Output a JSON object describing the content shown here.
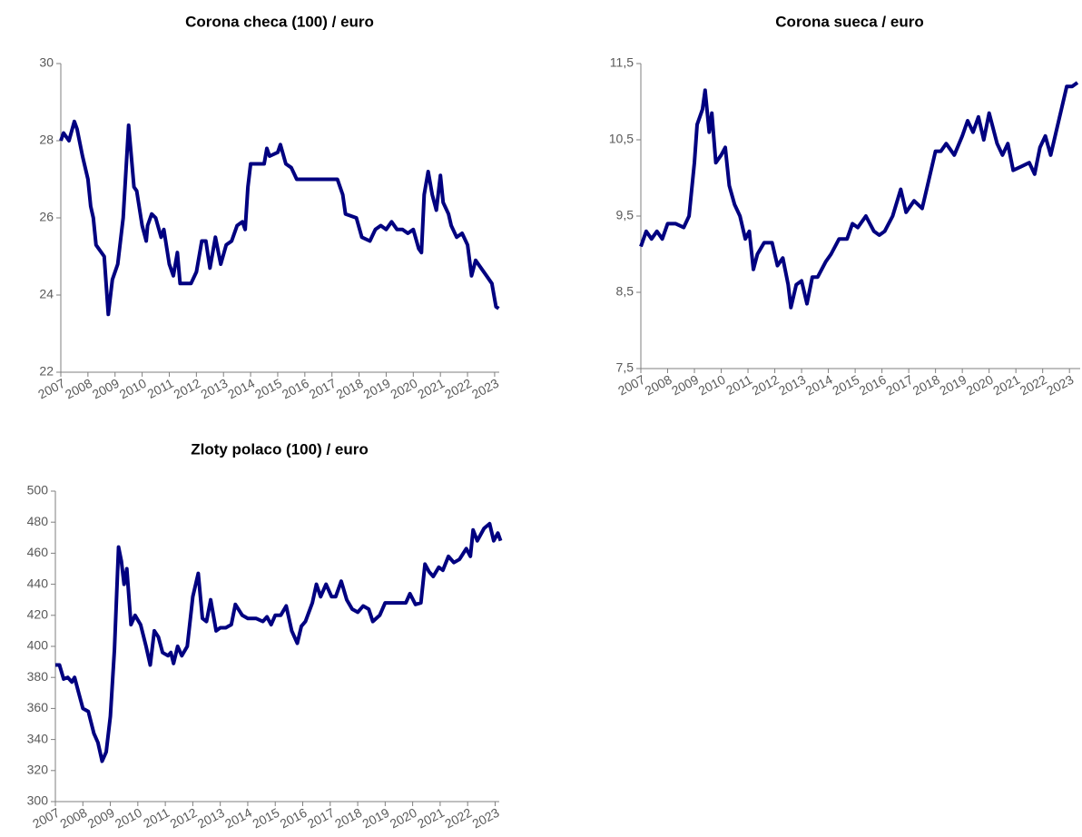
{
  "chart_data": [
    {
      "type": "line",
      "title": "Corona checa (100) / euro",
      "color": "#000080",
      "x": [
        2007.0,
        2007.1,
        2007.3,
        2007.5,
        2007.6,
        2007.8,
        2008.0,
        2008.1,
        2008.2,
        2008.3,
        2008.6,
        2008.75,
        2008.9,
        2009.1,
        2009.3,
        2009.5,
        2009.7,
        2009.8,
        2010.0,
        2010.15,
        2010.2,
        2010.35,
        2010.5,
        2010.7,
        2010.8,
        2011.0,
        2011.15,
        2011.3,
        2011.4,
        2011.6,
        2011.8,
        2012.0,
        2012.2,
        2012.35,
        2012.5,
        2012.7,
        2012.9,
        2013.1,
        2013.3,
        2013.5,
        2013.7,
        2013.8,
        2013.9,
        2014.0,
        2014.3,
        2014.5,
        2014.6,
        2014.7,
        2015.0,
        2015.1,
        2015.3,
        2015.5,
        2015.7,
        2016.0,
        2016.3,
        2016.6,
        2016.9,
        2017.2,
        2017.4,
        2017.5,
        2017.9,
        2018.1,
        2018.4,
        2018.6,
        2018.8,
        2019.0,
        2019.2,
        2019.4,
        2019.6,
        2019.8,
        2020.0,
        2020.2,
        2020.3,
        2020.4,
        2020.55,
        2020.7,
        2020.85,
        2021.0,
        2021.1,
        2021.3,
        2021.4,
        2021.6,
        2021.8,
        2022.0,
        2022.15,
        2022.3,
        2022.5,
        2022.7,
        2022.9,
        2023.05,
        2023.15
      ],
      "values": [
        28.0,
        28.2,
        28.0,
        28.5,
        28.3,
        27.6,
        27.0,
        26.3,
        26.0,
        25.3,
        25.0,
        23.5,
        24.4,
        24.8,
        26.0,
        28.4,
        26.8,
        26.7,
        25.8,
        25.4,
        25.8,
        26.1,
        26.0,
        25.5,
        25.7,
        24.8,
        24.5,
        25.1,
        24.3,
        24.3,
        24.3,
        24.6,
        25.4,
        25.4,
        24.7,
        25.5,
        24.8,
        25.3,
        25.4,
        25.8,
        25.9,
        25.7,
        26.8,
        27.4,
        27.4,
        27.4,
        27.8,
        27.6,
        27.7,
        27.9,
        27.4,
        27.3,
        27.0,
        27.0,
        27.0,
        27.0,
        27.0,
        27.0,
        26.6,
        26.1,
        26.0,
        25.5,
        25.4,
        25.7,
        25.8,
        25.7,
        25.9,
        25.7,
        25.7,
        25.6,
        25.7,
        25.2,
        25.1,
        26.6,
        27.2,
        26.6,
        26.2,
        27.1,
        26.4,
        26.1,
        25.8,
        25.5,
        25.6,
        25.3,
        24.5,
        24.9,
        24.7,
        24.5,
        24.3,
        23.7,
        23.65
      ],
      "xlim": [
        2007,
        2023.17
      ],
      "xticks": [
        2007,
        2008,
        2009,
        2010,
        2011,
        2012,
        2013,
        2014,
        2015,
        2016,
        2017,
        2018,
        2019,
        2020,
        2021,
        2022,
        2023
      ],
      "ylim": [
        22,
        30
      ],
      "yticks": [
        22,
        24,
        26,
        28,
        30
      ]
    },
    {
      "type": "line",
      "title": "Corona sueca / euro",
      "color": "#000080",
      "x": [
        2007.0,
        2007.2,
        2007.4,
        2007.6,
        2007.8,
        2008.0,
        2008.3,
        2008.6,
        2008.8,
        2009.0,
        2009.1,
        2009.3,
        2009.4,
        2009.55,
        2009.65,
        2009.8,
        2010.0,
        2010.15,
        2010.3,
        2010.5,
        2010.7,
        2010.9,
        2011.05,
        2011.2,
        2011.35,
        2011.6,
        2011.9,
        2012.1,
        2012.3,
        2012.5,
        2012.6,
        2012.8,
        2013.0,
        2013.2,
        2013.4,
        2013.6,
        2013.9,
        2014.1,
        2014.4,
        2014.7,
        2014.9,
        2015.1,
        2015.4,
        2015.7,
        2015.9,
        2016.1,
        2016.4,
        2016.7,
        2016.9,
        2017.2,
        2017.5,
        2017.7,
        2018.0,
        2018.2,
        2018.4,
        2018.7,
        2019.0,
        2019.2,
        2019.4,
        2019.6,
        2019.8,
        2020.0,
        2020.3,
        2020.5,
        2020.7,
        2020.9,
        2021.2,
        2021.5,
        2021.7,
        2021.9,
        2022.1,
        2022.3,
        2022.5,
        2022.7,
        2022.9,
        2023.1,
        2023.3
      ],
      "values": [
        9.1,
        9.3,
        9.2,
        9.3,
        9.2,
        9.4,
        9.4,
        9.35,
        9.5,
        10.2,
        10.7,
        10.9,
        11.15,
        10.6,
        10.85,
        10.2,
        10.3,
        10.4,
        9.9,
        9.65,
        9.5,
        9.2,
        9.3,
        8.8,
        9.0,
        9.15,
        9.15,
        8.85,
        8.95,
        8.6,
        8.3,
        8.6,
        8.65,
        8.35,
        8.7,
        8.7,
        8.9,
        9.0,
        9.2,
        9.2,
        9.4,
        9.35,
        9.5,
        9.3,
        9.25,
        9.3,
        9.5,
        9.85,
        9.55,
        9.7,
        9.6,
        9.9,
        10.35,
        10.35,
        10.45,
        10.3,
        10.55,
        10.75,
        10.6,
        10.8,
        10.5,
        10.85,
        10.45,
        10.3,
        10.45,
        10.1,
        10.15,
        10.2,
        10.05,
        10.4,
        10.55,
        10.3,
        10.6,
        10.9,
        11.2,
        11.2,
        11.25
      ],
      "xlim": [
        2007,
        2023.4
      ],
      "xticks": [
        2007,
        2008,
        2009,
        2010,
        2011,
        2012,
        2013,
        2014,
        2015,
        2016,
        2017,
        2018,
        2019,
        2020,
        2021,
        2022,
        2023
      ],
      "ylim": [
        7.5,
        11.5
      ],
      "yticks": [
        {
          "value": 7.5,
          "label": "7,5"
        },
        {
          "value": 8.5,
          "label": "8,5"
        },
        {
          "value": 9.5,
          "label": "9,5"
        },
        {
          "value": 10.5,
          "label": "10,5"
        },
        {
          "value": 11.5,
          "label": "11,5"
        }
      ]
    },
    {
      "type": "line",
      "title": "Zloty polaco (100) / euro",
      "color": "#000080",
      "x": [
        2007.0,
        2007.15,
        2007.3,
        2007.45,
        2007.6,
        2007.7,
        2007.85,
        2008.0,
        2008.2,
        2008.4,
        2008.55,
        2008.7,
        2008.85,
        2009.0,
        2009.15,
        2009.3,
        2009.4,
        2009.5,
        2009.6,
        2009.75,
        2009.9,
        2010.1,
        2010.3,
        2010.45,
        2010.6,
        2010.75,
        2010.9,
        2011.1,
        2011.2,
        2011.3,
        2011.45,
        2011.6,
        2011.8,
        2012.0,
        2012.2,
        2012.35,
        2012.5,
        2012.65,
        2012.85,
        2013.0,
        2013.2,
        2013.4,
        2013.55,
        2013.8,
        2014.0,
        2014.3,
        2014.55,
        2014.7,
        2014.85,
        2015.0,
        2015.2,
        2015.4,
        2015.6,
        2015.8,
        2015.95,
        2016.1,
        2016.35,
        2016.5,
        2016.65,
        2016.85,
        2017.05,
        2017.2,
        2017.4,
        2017.6,
        2017.8,
        2018.0,
        2018.2,
        2018.4,
        2018.55,
        2018.8,
        2019.0,
        2019.2,
        2019.5,
        2019.75,
        2019.9,
        2020.1,
        2020.3,
        2020.45,
        2020.6,
        2020.75,
        2020.95,
        2021.1,
        2021.3,
        2021.5,
        2021.7,
        2021.95,
        2022.1,
        2022.2,
        2022.35,
        2022.6,
        2022.8,
        2022.95,
        2023.1,
        2023.2
      ],
      "values": [
        388,
        388,
        379,
        380,
        377,
        380,
        370,
        360,
        358,
        344,
        338,
        326,
        332,
        355,
        398,
        464,
        455,
        440,
        450,
        414,
        420,
        414,
        400,
        388,
        410,
        406,
        396,
        394,
        396,
        389,
        400,
        394,
        400,
        432,
        447,
        418,
        416,
        430,
        410,
        412,
        412,
        414,
        427,
        420,
        418,
        418,
        416,
        419,
        414,
        420,
        420,
        426,
        410,
        402,
        413,
        416,
        428,
        440,
        432,
        440,
        432,
        432,
        442,
        430,
        424,
        422,
        426,
        424,
        416,
        420,
        428,
        428,
        428,
        428,
        434,
        427,
        428,
        453,
        448,
        445,
        451,
        449,
        458,
        454,
        456,
        463,
        458,
        475,
        468,
        476,
        479,
        468,
        473,
        468
      ],
      "xlim": [
        2007,
        2023.15
      ],
      "xticks": [
        2007,
        2008,
        2009,
        2010,
        2011,
        2012,
        2013,
        2014,
        2015,
        2016,
        2017,
        2018,
        2019,
        2020,
        2021,
        2022,
        2023
      ],
      "ylim": [
        300,
        500
      ],
      "yticks": [
        300,
        320,
        340,
        360,
        380,
        400,
        420,
        440,
        460,
        480,
        500
      ]
    }
  ]
}
